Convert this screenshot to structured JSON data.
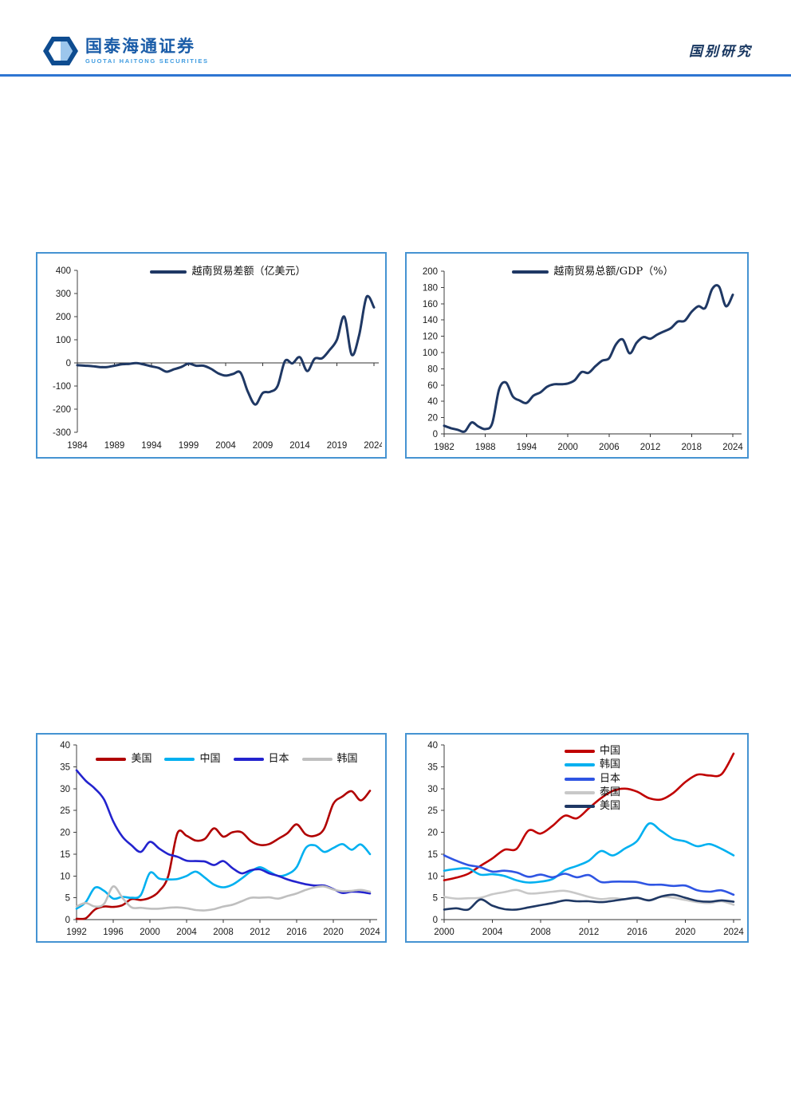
{
  "header": {
    "logo": {
      "cn": "国泰海通证券",
      "en": "GUOTAI HAITONG SECURITIES",
      "brand_blue": "#1A5CA8",
      "light_blue": "#3E9BE0",
      "hex_dark": "#0E4C90",
      "hex_light": "#9CC6EC"
    },
    "section_title": "国别研究",
    "title_color": "#16355F",
    "rule_color": "#2E75D2",
    "box_border_color": "#4593D2"
  },
  "chart_data": [
    {
      "type": "line",
      "name": "vietnam-trade-balance",
      "ylim": [
        -300,
        400
      ],
      "ystep": 100,
      "x_start": 1984,
      "x_end": 2024,
      "xtick_start": 1984,
      "xtick_step": 5,
      "grid": false,
      "legend_position": "top-center",
      "series": [
        {
          "name": "越南贸易差额（亿美元）",
          "color": "#1F3864",
          "values": [
            -10,
            -12,
            -14,
            -18,
            -18,
            -12,
            -6,
            -4,
            -1,
            -7,
            -15,
            -22,
            -38,
            -28,
            -18,
            -3,
            -12,
            -12,
            -25,
            -45,
            -55,
            -48,
            -42,
            -125,
            -180,
            -130,
            -125,
            -100,
            8,
            -2,
            25,
            -35,
            18,
            20,
            55,
            100,
            200,
            35,
            120,
            285,
            240
          ]
        }
      ]
    },
    {
      "type": "line",
      "name": "vietnam-trade-to-gdp",
      "ylim": [
        0,
        200
      ],
      "ystep": 20,
      "x_start": 1982,
      "x_end": 2024,
      "xtick_start": 1982,
      "xtick_step": 6,
      "grid": false,
      "legend_position": "top-center",
      "series": [
        {
          "name": "越南贸易总额/GDP（%）",
          "color": "#1F3864",
          "values": [
            10,
            7,
            5,
            3,
            14,
            9,
            6,
            13,
            55,
            63,
            46,
            41,
            38,
            47,
            51,
            58,
            61,
            61,
            62,
            66,
            76,
            75,
            83,
            90,
            93,
            110,
            116,
            99,
            112,
            119,
            117,
            122,
            126,
            130,
            138,
            139,
            150,
            157,
            155,
            178,
            181,
            157,
            171
          ]
        }
      ]
    },
    {
      "type": "line",
      "name": "partner-share-1992-2024",
      "ylim": [
        0,
        40
      ],
      "ystep": 5,
      "x_start": 1992,
      "x_end": 2024,
      "xtick_start": 1992,
      "xtick_step": 4,
      "grid": false,
      "legend_position": "top-center",
      "series": [
        {
          "name": "美国",
          "color": "#B00000",
          "values": [
            0.2,
            0.3,
            2.3,
            3.0,
            2.9,
            3.3,
            4.7,
            4.5,
            5.0,
            6.5,
            10.0,
            19.8,
            19.2,
            18.1,
            18.5,
            20.9,
            19.0,
            20.0,
            20.0,
            18.0,
            17.1,
            17.3,
            18.5,
            19.8,
            21.8,
            19.5,
            19.2,
            20.8,
            26.5,
            28.2,
            29.4,
            27.3,
            29.5
          ]
        },
        {
          "name": "中国",
          "color": "#00B0F0",
          "values": [
            2.5,
            4.0,
            7.3,
            6.6,
            4.8,
            5.2,
            5.0,
            5.6,
            10.7,
            9.4,
            9.2,
            9.3,
            10.0,
            11.0,
            9.6,
            8.0,
            7.4,
            8.0,
            9.4,
            11.0,
            12.0,
            11.0,
            10.0,
            10.4,
            12.0,
            16.4,
            17.0,
            15.5,
            16.4,
            17.3,
            16.0,
            17.2,
            15.0
          ]
        },
        {
          "name": "日本",
          "color": "#2323CE",
          "values": [
            34.2,
            31.8,
            30.0,
            27.5,
            22.5,
            19.0,
            17.0,
            15.5,
            17.8,
            16.3,
            15.0,
            14.4,
            13.5,
            13.4,
            13.3,
            12.5,
            13.4,
            11.8,
            10.6,
            11.3,
            11.5,
            10.6,
            10.0,
            9.2,
            8.6,
            8.1,
            7.8,
            7.8,
            7.0,
            6.1,
            6.4,
            6.3,
            6.0
          ]
        },
        {
          "name": "韩国",
          "color": "#BFBFBF",
          "values": [
            3.0,
            3.8,
            3.0,
            3.6,
            7.6,
            5.0,
            2.8,
            2.7,
            2.5,
            2.5,
            2.7,
            2.8,
            2.6,
            2.2,
            2.1,
            2.4,
            3.0,
            3.4,
            4.2,
            5.0,
            5.0,
            5.1,
            4.8,
            5.4,
            6.0,
            6.8,
            7.4,
            7.6,
            6.9,
            6.5,
            6.6,
            6.8,
            6.4
          ]
        }
      ]
    },
    {
      "type": "line",
      "name": "partner-share-2000-2024",
      "ylim": [
        0,
        40
      ],
      "ystep": 5,
      "x_start": 2000,
      "x_end": 2024,
      "xtick_start": 2000,
      "xtick_step": 4,
      "grid": false,
      "legend_position": "top-center",
      "legend_rows": [
        [
          0,
          1,
          2
        ],
        [
          3,
          4
        ]
      ],
      "series": [
        {
          "name": "中国",
          "color": "#C00000",
          "values": [
            9.0,
            9.6,
            10.5,
            12.3,
            14.0,
            16.0,
            16.2,
            20.4,
            19.7,
            21.5,
            23.8,
            23.2,
            25.5,
            27.8,
            29.5,
            30.0,
            29.3,
            27.8,
            27.5,
            29.0,
            31.5,
            33.2,
            33.0,
            33.3,
            38.0
          ]
        },
        {
          "name": "韩国",
          "color": "#00B0F0",
          "values": [
            11.2,
            11.6,
            11.7,
            10.3,
            10.4,
            10.0,
            9.0,
            8.5,
            8.7,
            9.3,
            11.3,
            12.3,
            13.5,
            15.7,
            14.7,
            16.3,
            18.0,
            22.0,
            20.3,
            18.5,
            17.9,
            16.8,
            17.3,
            16.2,
            14.7
          ]
        },
        {
          "name": "日本",
          "color": "#2F55E3",
          "values": [
            14.7,
            13.5,
            12.5,
            12.0,
            11.0,
            11.2,
            10.8,
            9.8,
            10.3,
            9.7,
            10.5,
            9.7,
            10.2,
            8.6,
            8.7,
            8.7,
            8.6,
            8.0,
            8.0,
            7.7,
            7.8,
            6.7,
            6.4,
            6.7,
            5.7
          ]
        },
        {
          "name": "泰国",
          "color": "#C8C8C8",
          "values": [
            5.2,
            4.8,
            4.9,
            5.0,
            5.8,
            6.3,
            6.8,
            6.0,
            6.1,
            6.4,
            6.6,
            6.0,
            5.2,
            4.7,
            4.9,
            4.7,
            4.9,
            4.5,
            5.2,
            5.0,
            4.5,
            4.0,
            3.8,
            4.2,
            3.4
          ]
        },
        {
          "name": "美国",
          "color": "#1F3864",
          "values": [
            2.3,
            2.6,
            2.3,
            4.6,
            3.2,
            2.4,
            2.3,
            2.8,
            3.3,
            3.8,
            4.4,
            4.2,
            4.2,
            4.0,
            4.3,
            4.7,
            5.0,
            4.4,
            5.3,
            5.7,
            5.0,
            4.3,
            4.1,
            4.4,
            4.1
          ]
        }
      ]
    }
  ]
}
